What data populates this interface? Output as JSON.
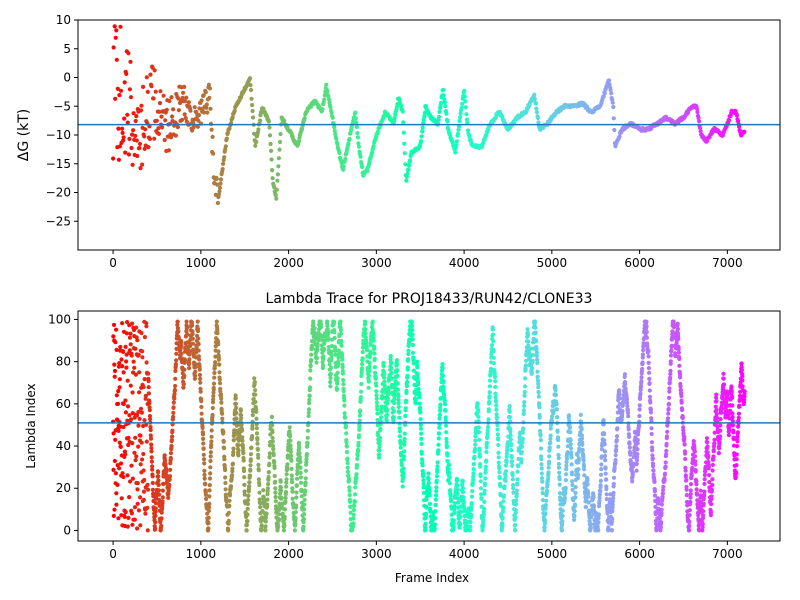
{
  "chart_data": [
    {
      "type": "scatter",
      "title": "",
      "xlabel": "",
      "ylabel": "ΔG (kT)",
      "xlim": [
        -400,
        7600
      ],
      "ylim": [
        -30,
        10
      ],
      "xticks": [
        "0",
        "1000",
        "2000",
        "3000",
        "4000",
        "5000",
        "6000",
        "7000"
      ],
      "yticks": [
        "10",
        "5",
        "0",
        "−5",
        "−10",
        "−15",
        "−20",
        "−25"
      ],
      "hline": -8.2,
      "hline_color": "#1f77b4",
      "colormap": "rainbow",
      "n_frames": 7200,
      "trace_anchors": [
        [
          0,
          0
        ],
        [
          150,
          -5
        ],
        [
          300,
          -10
        ],
        [
          450,
          -4
        ],
        [
          600,
          -9
        ],
        [
          800,
          -4
        ],
        [
          950,
          -8
        ],
        [
          1100,
          -3
        ],
        [
          1150,
          -17
        ],
        [
          1200,
          -21
        ],
        [
          1300,
          -10
        ],
        [
          1400,
          -5
        ],
        [
          1500,
          -2
        ],
        [
          1560,
          0
        ],
        [
          1620,
          -12
        ],
        [
          1700,
          -5
        ],
        [
          1780,
          -8
        ],
        [
          1820,
          -18
        ],
        [
          1860,
          -21
        ],
        [
          1920,
          -7
        ],
        [
          2000,
          -9
        ],
        [
          2100,
          -12
        ],
        [
          2200,
          -6
        ],
        [
          2300,
          -4
        ],
        [
          2380,
          -6
        ],
        [
          2430,
          -1.5
        ],
        [
          2500,
          -7
        ],
        [
          2560,
          -12
        ],
        [
          2620,
          -16
        ],
        [
          2700,
          -10
        ],
        [
          2760,
          -6
        ],
        [
          2800,
          -12
        ],
        [
          2850,
          -17
        ],
        [
          2900,
          -16
        ],
        [
          3000,
          -10
        ],
        [
          3100,
          -6
        ],
        [
          3200,
          -8
        ],
        [
          3250,
          -3.5
        ],
        [
          3300,
          -6
        ],
        [
          3340,
          -18
        ],
        [
          3400,
          -13
        ],
        [
          3500,
          -12
        ],
        [
          3560,
          -5
        ],
        [
          3620,
          -7
        ],
        [
          3700,
          -8
        ],
        [
          3760,
          -2
        ],
        [
          3820,
          -9
        ],
        [
          3900,
          -13
        ],
        [
          4000,
          -2
        ],
        [
          4050,
          -10
        ],
        [
          4100,
          -12
        ],
        [
          4200,
          -12
        ],
        [
          4300,
          -8
        ],
        [
          4400,
          -6
        ],
        [
          4500,
          -9
        ],
        [
          4600,
          -7
        ],
        [
          4700,
          -6
        ],
        [
          4800,
          -3
        ],
        [
          4860,
          -9
        ],
        [
          4950,
          -8
        ],
        [
          5050,
          -6
        ],
        [
          5150,
          -5
        ],
        [
          5250,
          -5
        ],
        [
          5350,
          -4.5
        ],
        [
          5450,
          -6
        ],
        [
          5550,
          -5
        ],
        [
          5650,
          -0.5
        ],
        [
          5700,
          -5
        ],
        [
          5720,
          -12
        ],
        [
          5800,
          -9
        ],
        [
          5900,
          -8
        ],
        [
          6000,
          -9
        ],
        [
          6100,
          -9
        ],
        [
          6200,
          -8
        ],
        [
          6300,
          -7
        ],
        [
          6400,
          -8
        ],
        [
          6500,
          -7
        ],
        [
          6600,
          -5
        ],
        [
          6650,
          -5
        ],
        [
          6700,
          -10
        ],
        [
          6760,
          -11
        ],
        [
          6850,
          -9
        ],
        [
          6950,
          -10
        ],
        [
          7050,
          -6
        ],
        [
          7100,
          -6
        ],
        [
          7150,
          -10
        ],
        [
          7200,
          -9.5
        ]
      ]
    },
    {
      "type": "scatter",
      "title": "Lambda Trace for PROJ18433/RUN42/CLONE33",
      "xlabel": "Frame Index",
      "ylabel": "Lambda Index",
      "xlim": [
        -400,
        7600
      ],
      "ylim": [
        -5,
        104
      ],
      "xticks": [
        "0",
        "1000",
        "2000",
        "3000",
        "4000",
        "5000",
        "6000",
        "7000"
      ],
      "yticks": [
        "0",
        "20",
        "40",
        "60",
        "80",
        "100"
      ],
      "hline": 51,
      "hline_color": "#1f77b4",
      "colormap": "rainbow",
      "n_frames": 7200,
      "lambda_min": 0,
      "lambda_max": 99
    }
  ]
}
